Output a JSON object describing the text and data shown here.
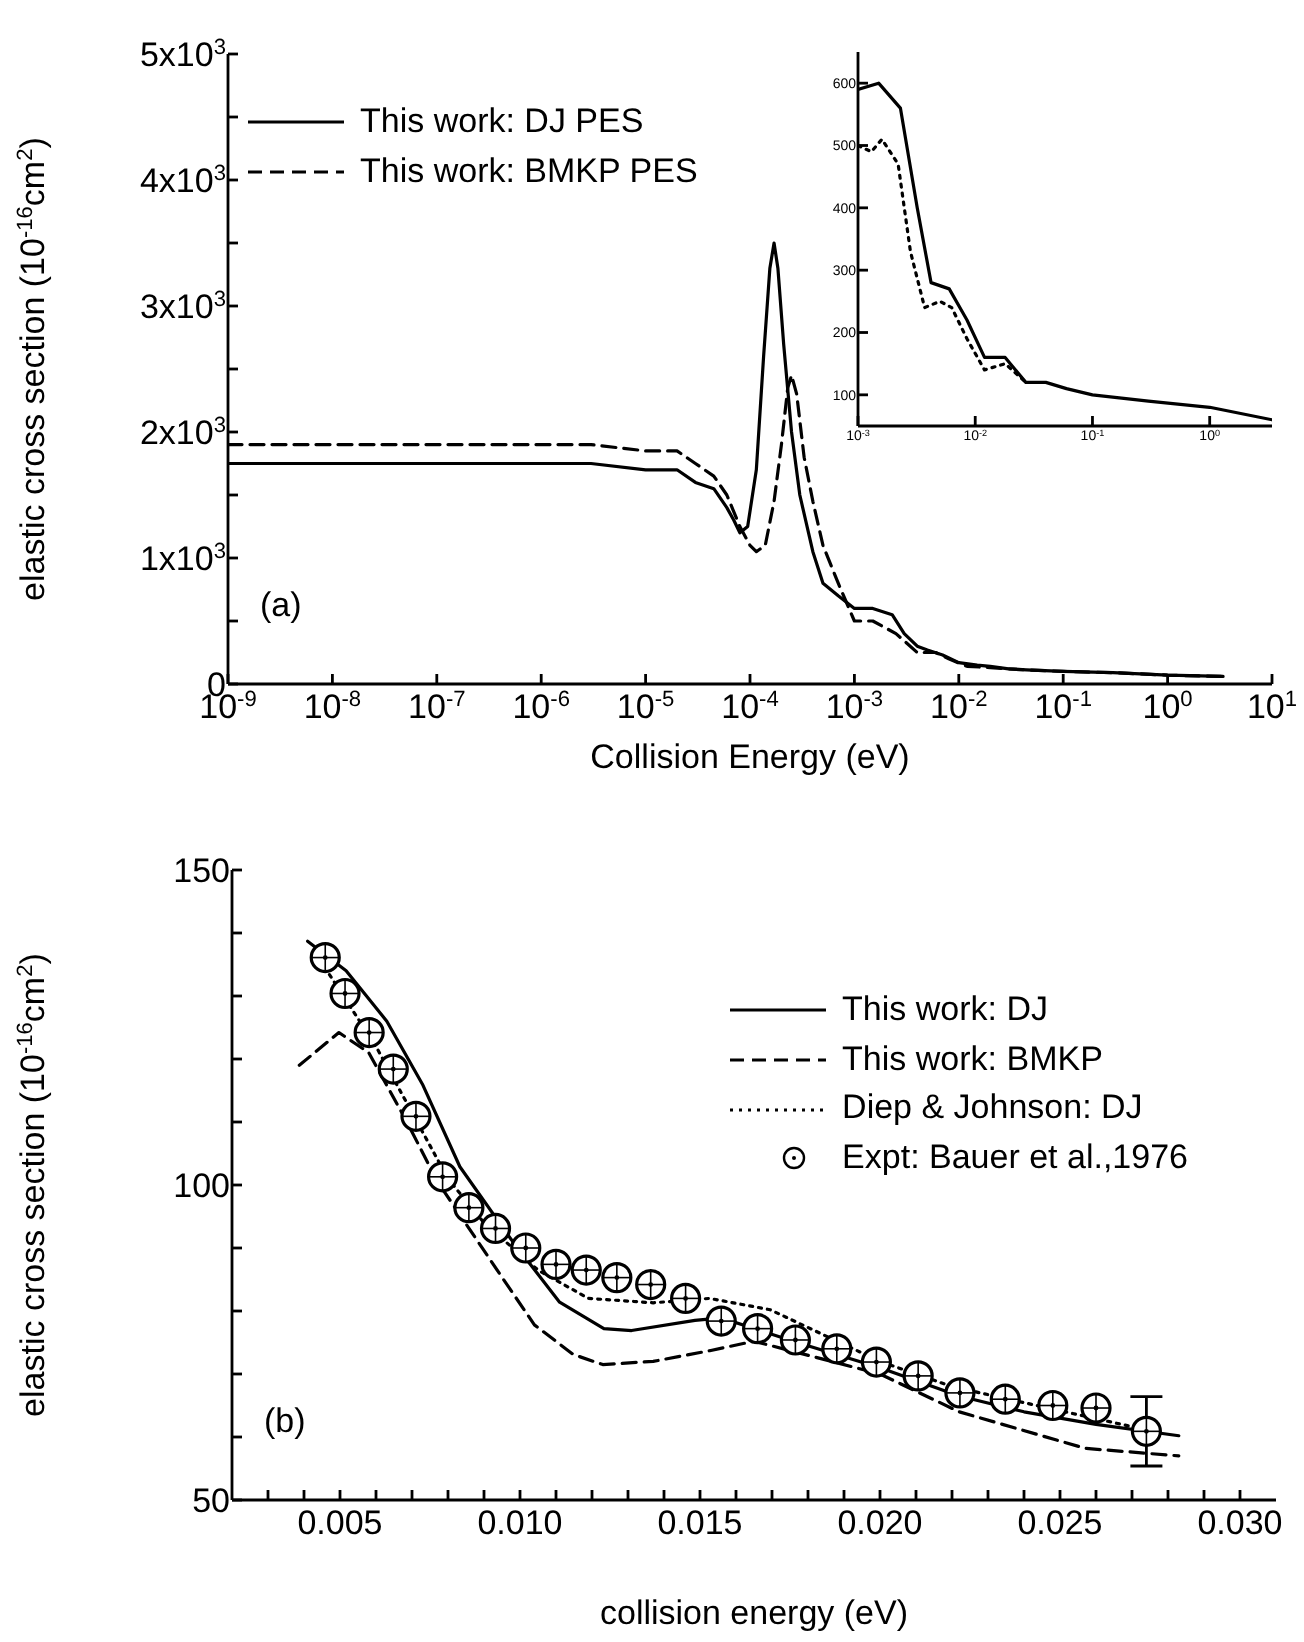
{
  "chart_data": [
    {
      "type": "line",
      "xlabel": "Collision Energy (eV)",
      "ylabel": "elastic cross section (10$^{-16}$cm$^{2}$)",
      "log": "x",
      "xlim": [
        1e-09,
        10
      ],
      "ylim": [
        0,
        5000
      ],
      "xticks": [
        {
          "value": 1e-09,
          "label": "10$^{-9}$"
        },
        {
          "value": 1e-08,
          "label": "10$^{-8}$"
        },
        {
          "value": 1e-07,
          "label": "10$^{-7}$"
        },
        {
          "value": 1e-06,
          "label": "10$^{-6}$"
        },
        {
          "value": 1e-05,
          "label": "10$^{-5}$"
        },
        {
          "value": 0.0001,
          "label": "10$^{-4}$"
        },
        {
          "value": 0.001,
          "label": "10$^{-3}$"
        },
        {
          "value": 0.01,
          "label": "10$^{-2}$"
        },
        {
          "value": 0.1,
          "label": "10$^{-1}$"
        },
        {
          "value": 1,
          "label": "10$^{0}$"
        },
        {
          "value": 10,
          "label": "10$^{1}$"
        }
      ],
      "yticks": [
        0,
        {
          "value": 500,
          "label": null
        },
        {
          "value": 1000,
          "label": "1x10$^{3}$"
        },
        {
          "value": 1500,
          "label": null
        },
        {
          "value": 2000,
          "label": "2x10$^{3}$"
        },
        {
          "value": 2500,
          "label": null
        },
        {
          "value": 3000,
          "label": "3x10$^{3}$"
        },
        {
          "value": 3500,
          "label": null
        },
        {
          "value": 4000,
          "label": "4x10$^{3}$"
        },
        {
          "value": 4500,
          "label": null
        },
        {
          "value": 5000,
          "label": "5x10$^{3}$"
        }
      ],
      "legend": "top left",
      "annotations": [
        "(a)"
      ],
      "series": [
        {
          "name": "This work: DJ PES",
          "color": "#000000",
          "line_style": "solid",
          "x": [
            1e-09,
            1e-07,
            1e-06,
            3e-06,
            1e-05,
            2e-05,
            3e-05,
            4.5e-05,
            6e-05,
            7e-05,
            8e-05,
            9.5e-05,
            0.000115,
            0.000135,
            0.000155,
            0.00017,
            0.000185,
            0.00021,
            0.00025,
            0.0003,
            0.0004,
            0.0005,
            0.0007,
            0.001,
            0.0015,
            0.0023,
            0.003,
            0.004,
            0.005,
            0.007,
            0.01,
            0.015,
            0.02,
            0.03,
            0.05,
            0.1,
            0.3,
            1,
            3.4
          ],
          "values": [
            1750,
            1750,
            1750,
            1750,
            1700,
            1700,
            1600,
            1550,
            1400,
            1300,
            1200,
            1250,
            1700,
            2600,
            3300,
            3500,
            3300,
            2700,
            2000,
            1500,
            1050,
            800,
            700,
            600,
            600,
            550,
            400,
            300,
            270,
            230,
            170,
            150,
            140,
            120,
            110,
            100,
            90,
            70,
            60
          ]
        },
        {
          "name": "This work: BMKP PES",
          "color": "#000000",
          "line_style": "dashed",
          "x": [
            1e-09,
            1e-07,
            1e-06,
            3e-06,
            1e-05,
            2e-05,
            3e-05,
            4.5e-05,
            6e-05,
            8e-05,
            0.0001,
            0.000115,
            0.00014,
            0.00017,
            0.0002,
            0.00023,
            0.00025,
            0.00028,
            0.00033,
            0.0004,
            0.0005,
            0.0007,
            0.001,
            0.0015,
            0.0025,
            0.004,
            0.006,
            0.008,
            0.012,
            0.02,
            0.03,
            0.05,
            0.1,
            0.3,
            1,
            3.4
          ],
          "values": [
            1900,
            1900,
            1900,
            1900,
            1850,
            1850,
            1750,
            1650,
            1500,
            1250,
            1100,
            1050,
            1100,
            1450,
            1900,
            2350,
            2450,
            2300,
            1800,
            1450,
            1100,
            800,
            500,
            500,
            400,
            250,
            250,
            200,
            140,
            130,
            120,
            110,
            100,
            90,
            70,
            60
          ]
        }
      ]
    },
    {
      "type": "line",
      "log": "x",
      "xlim": [
        0.001,
        3.4
      ],
      "ylim": [
        50,
        650
      ],
      "xticks": [
        {
          "value": 0.001,
          "label": "10$^{-3}$"
        },
        {
          "value": 0.01,
          "label": "10$^{-2}$"
        },
        {
          "value": 0.1,
          "label": "10$^{-1}$"
        },
        {
          "value": 1,
          "label": "10$^{0}$"
        }
      ],
      "yticks": [
        100,
        200,
        300,
        400,
        500,
        600
      ],
      "series": [
        {
          "color": "#000000",
          "line_style": "solid",
          "x": [
            0.001,
            0.0015,
            0.0023,
            0.0032,
            0.0042,
            0.006,
            0.0085,
            0.012,
            0.018,
            0.027,
            0.04,
            0.06,
            0.1,
            0.3,
            1,
            3.4
          ],
          "values": [
            590,
            600,
            560,
            400,
            280,
            270,
            220,
            160,
            160,
            120,
            120,
            110,
            100,
            90,
            80,
            60
          ]
        },
        {
          "color": "#000000",
          "line_style": "dotted",
          "x": [
            0.001,
            0.0013,
            0.0016,
            0.0022,
            0.0028,
            0.0037,
            0.005,
            0.0063,
            0.0085,
            0.012,
            0.018,
            0.027
          ],
          "values": [
            500,
            490,
            510,
            470,
            330,
            240,
            250,
            240,
            190,
            140,
            150,
            120
          ]
        }
      ]
    },
    {
      "type": "line",
      "xlabel": "collision energy (eV)",
      "ylabel": "elastic cross section (10$^{-16}$cm$^{2}$)",
      "xlim": [
        0.002,
        0.031
      ],
      "ylim": [
        50,
        150
      ],
      "xticks": [
        {
          "value": 0.003,
          "label": null
        },
        {
          "value": 0.004,
          "label": null
        },
        {
          "value": 0.005,
          "label": "0.005"
        },
        {
          "value": 0.006,
          "label": null
        },
        {
          "value": 0.007,
          "label": null
        },
        {
          "value": 0.008,
          "label": null
        },
        {
          "value": 0.009,
          "label": null
        },
        {
          "value": 0.01,
          "label": "0.010"
        },
        {
          "value": 0.011,
          "label": null
        },
        {
          "value": 0.012,
          "label": null
        },
        {
          "value": 0.013,
          "label": null
        },
        {
          "value": 0.014,
          "label": null
        },
        {
          "value": 0.015,
          "label": "0.015"
        },
        {
          "value": 0.016,
          "label": null
        },
        {
          "value": 0.017,
          "label": null
        },
        {
          "value": 0.018,
          "label": null
        },
        {
          "value": 0.019,
          "label": null
        },
        {
          "value": 0.02,
          "label": "0.020"
        },
        {
          "value": 0.021,
          "label": null
        },
        {
          "value": 0.022,
          "label": null
        },
        {
          "value": 0.023,
          "label": null
        },
        {
          "value": 0.024,
          "label": null
        },
        {
          "value": 0.025,
          "label": "0.025"
        },
        {
          "value": 0.026,
          "label": null
        },
        {
          "value": 0.027,
          "label": null
        },
        {
          "value": 0.028,
          "label": null
        },
        {
          "value": 0.029,
          "label": null
        },
        {
          "value": 0.03,
          "label": "0.030"
        }
      ],
      "yticks": [
        50,
        {
          "value": 60,
          "label": null
        },
        {
          "value": 70,
          "label": null
        },
        {
          "value": 80,
          "label": null
        },
        {
          "value": 90,
          "label": null
        },
        100,
        {
          "value": 110,
          "label": null
        },
        {
          "value": 120,
          "label": null
        },
        {
          "value": 130,
          "label": null
        },
        {
          "value": 140,
          "label": null
        },
        150
      ],
      "legend": "top right",
      "annotations": [
        "(b)"
      ],
      "series": [
        {
          "name": "This work: DJ",
          "color": "#000000",
          "line_style": "solid",
          "x": [
            0.0041,
            0.00517,
            0.0063,
            0.00729,
            0.00833,
            0.0098,
            0.0111,
            0.01233,
            0.0131,
            0.01486,
            0.0156,
            0.0177,
            0.02,
            0.0222,
            0.024,
            0.026,
            0.0283
          ],
          "values": [
            138.7,
            134,
            126,
            116,
            102.9,
            91,
            81.4,
            77.2,
            76.9,
            78.5,
            78.9,
            75,
            71,
            66.5,
            64,
            62,
            60.2
          ]
        },
        {
          "name": "This work: BMKP",
          "color": "#000000",
          "line_style": "dashed",
          "x": [
            0.00387,
            0.00497,
            0.0058,
            0.00686,
            0.0077,
            0.00855,
            0.0094,
            0.0104,
            0.01148,
            0.0123,
            0.0137,
            0.01527,
            0.0165,
            0.02,
            0.0222,
            0.0257,
            0.0283
          ],
          "values": [
            119,
            124.2,
            121,
            110,
            100.6,
            93.4,
            86.2,
            77.8,
            73.1,
            71.5,
            72,
            73.7,
            75.2,
            70,
            64,
            58.2,
            57
          ]
        },
        {
          "name": "Diep & Johnson: DJ",
          "color": "#000000",
          "line_style": "dotted",
          "x": [
            0.0043,
            0.006,
            0.008,
            0.009,
            0.0105,
            0.0119,
            0.0137,
            0.01527,
            0.01695,
            0.02,
            0.022,
            0.0275
          ],
          "values": [
            137,
            122,
            101,
            94,
            86.5,
            82,
            81.3,
            82,
            80.2,
            72,
            68,
            61
          ]
        },
        {
          "name": "Expt: Bauer et al.,1976",
          "color": "#000000",
          "type": "scatter",
          "marker": "circle",
          "x": [
            0.00459,
            0.00514,
            0.00581,
            0.00648,
            0.00711,
            0.00785,
            0.00858,
            0.00932,
            0.01016,
            0.011,
            0.01184,
            0.01269,
            0.01363,
            0.0146,
            0.01559,
            0.0166,
            0.01765,
            0.0188,
            0.0199,
            0.02106,
            0.02222,
            0.02348,
            0.0248,
            0.026,
            0.0274
          ],
          "values": [
            136.1,
            130.4,
            124.2,
            118.4,
            110.9,
            101.3,
            96.4,
            93.1,
            90,
            87.4,
            86.5,
            85.3,
            84.2,
            82,
            78.4,
            77.2,
            75.4,
            74,
            71.9,
            69.7,
            67,
            66,
            65,
            64.6,
            60.9
          ],
          "errors": [
            null,
            null,
            null,
            null,
            null,
            null,
            null,
            null,
            null,
            null,
            null,
            null,
            null,
            null,
            null,
            null,
            null,
            null,
            null,
            null,
            null,
            null,
            null,
            null,
            5.5
          ]
        }
      ]
    }
  ]
}
